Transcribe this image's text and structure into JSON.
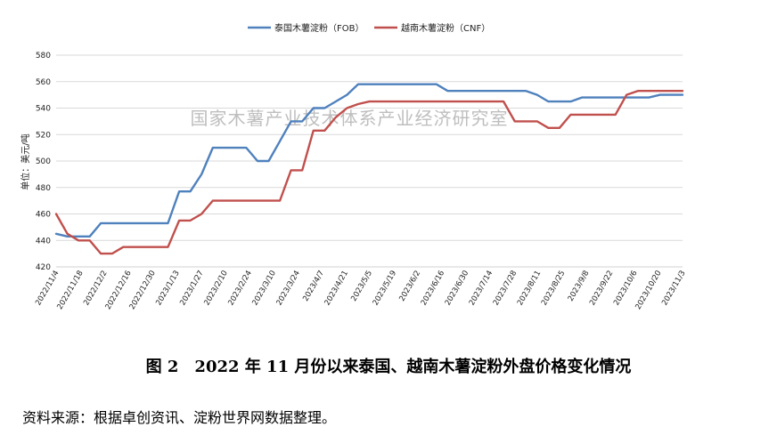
{
  "chart_data": {
    "type": "line",
    "title": "",
    "xlabel": "",
    "ylabel": "单位：美元/吨",
    "ylim": [
      420,
      580
    ],
    "yticks": [
      420,
      440,
      460,
      480,
      500,
      520,
      540,
      560,
      580
    ],
    "grid": true,
    "legend": "top-center",
    "x_tick_labels": [
      "2022/11/4",
      "2022/11/18",
      "2022/12/2",
      "2022/12/16",
      "2022/12/30",
      "2023/1/13",
      "2023/1/27",
      "2023/2/10",
      "2023/2/24",
      "2023/3/10",
      "2023/3/24",
      "2023/4/7",
      "2023/4/21",
      "2023/5/5",
      "2023/5/19",
      "2023/6/2",
      "2023/6/16",
      "2023/6/30",
      "2023/7/14",
      "2023/7/28",
      "2023/8/11",
      "2023/8/25",
      "2023/9/8",
      "2023/9/22",
      "2023/10/6",
      "2023/10/20",
      "2023/11/3"
    ],
    "series": [
      {
        "name": "泰国木薯淀粉（FOB）",
        "color": "#4F81BD",
        "values": [
          445,
          443,
          443,
          443,
          453,
          453,
          453,
          453,
          453,
          453,
          453,
          477,
          477,
          490,
          510,
          510,
          510,
          510,
          500,
          500,
          515,
          530,
          530,
          540,
          540,
          545,
          550,
          558,
          558,
          558,
          558,
          558,
          558,
          558,
          558,
          553,
          553,
          553,
          553,
          553,
          553,
          553,
          553,
          550,
          545,
          545,
          545,
          548,
          548,
          548,
          548,
          548,
          548,
          548,
          550,
          550,
          550
        ]
      },
      {
        "name": "越南木薯淀粉（CNF）",
        "color": "#C0504D",
        "values": [
          460,
          445,
          440,
          440,
          430,
          430,
          435,
          435,
          435,
          435,
          435,
          455,
          455,
          460,
          470,
          470,
          470,
          470,
          470,
          470,
          470,
          493,
          493,
          523,
          523,
          533,
          540,
          543,
          545,
          545,
          545,
          545,
          545,
          545,
          545,
          545,
          545,
          545,
          545,
          545,
          545,
          530,
          530,
          530,
          525,
          525,
          535,
          535,
          535,
          535,
          535,
          550,
          553,
          553,
          553,
          553,
          553
        ]
      }
    ]
  },
  "watermark": "国家木薯产业技术体系产业经济研究室",
  "caption": "图 2　2022 年 11 月份以来泰国、越南木薯淀粉外盘价格变化情况",
  "source": "资料来源：根据卓创资讯、淀粉世界网数据整理。"
}
